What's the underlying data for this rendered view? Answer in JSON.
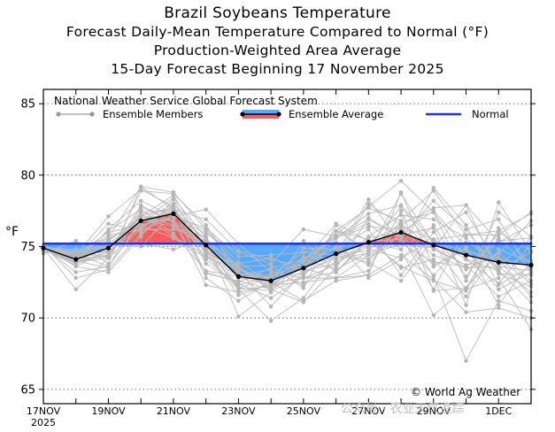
{
  "header": {
    "title": "Brazil Soybeans Temperature",
    "subtitle1": "Forecast Daily-Mean Temperature Compared to Normal (°F)",
    "subtitle2": "Production-Weighted Area Average",
    "subtitle3": "15-Day Forecast Beginning 17 November 2025"
  },
  "copyright": "© World Ag Weather",
  "watermark": "公众号 · 农业天气追踪",
  "colors": {
    "warm": "#ff5a5a",
    "cool": "#55aaff",
    "normal": "#1a33ee",
    "members": "#bbbbbb"
  },
  "chart_data": {
    "type": "line",
    "title": "Brazil Soybeans Temperature",
    "xlabel": "",
    "ylabel": "°F",
    "ylim": [
      64,
      86
    ],
    "yticks": [
      65,
      70,
      75,
      80,
      85
    ],
    "xtick_labels": [
      "17NOV",
      "19NOV",
      "21NOV",
      "23NOV",
      "25NOV",
      "27NOV",
      "29NOV",
      "1DEC"
    ],
    "xtick_sublabel": "2025",
    "x": [
      "17NOV",
      "18NOV",
      "19NOV",
      "20NOV",
      "21NOV",
      "22NOV",
      "23NOV",
      "24NOV",
      "25NOV",
      "26NOV",
      "27NOV",
      "28NOV",
      "29NOV",
      "30NOV",
      "1DEC",
      "2DEC"
    ],
    "legend_header": "National Weather Service Global Forecast System",
    "legend": [
      "Ensemble Members",
      "Ensemble Average",
      "Normal"
    ],
    "normal": [
      75.2,
      75.2,
      75.2,
      75.2,
      75.2,
      75.2,
      75.2,
      75.2,
      75.2,
      75.2,
      75.2,
      75.2,
      75.2,
      75.2,
      75.2,
      75.2
    ],
    "ensemble_average": [
      74.9,
      74.1,
      74.9,
      76.8,
      77.3,
      75.1,
      72.9,
      72.6,
      73.5,
      74.5,
      75.3,
      76.0,
      75.1,
      74.4,
      73.9,
      73.7
    ],
    "members": [
      [
        74.9,
        73.9,
        74.4,
        77.1,
        78.6,
        74.8,
        72.1,
        71.9,
        72.8,
        73.7,
        75.7,
        77.2,
        76.9,
        75.6,
        73.4,
        74.6
      ],
      [
        75.0,
        74.6,
        75.6,
        79.2,
        77.6,
        76.9,
        74.7,
        74.1,
        73.6,
        76.1,
        77.7,
        76.8,
        78.9,
        75.8,
        76.1,
        77.3
      ],
      [
        74.6,
        74.5,
        75.2,
        76.7,
        78.4,
        75.6,
        70.1,
        71.8,
        75.4,
        73.2,
        75.4,
        73.6,
        72.6,
        71.9,
        76.3,
        73.7
      ],
      [
        75.1,
        72.8,
        73.4,
        75.9,
        77.6,
        74.7,
        73.6,
        73.7,
        72.1,
        76.5,
        74.1,
        75.8,
        73.7,
        74.9,
        72.0,
        73.2
      ],
      [
        74.7,
        74.2,
        75.8,
        76.2,
        76.2,
        75.7,
        72.1,
        72.8,
        74.1,
        75.8,
        77.8,
        79.6,
        77.4,
        72.6,
        77.4,
        75.7
      ],
      [
        74.7,
        74.1,
        76.1,
        77.6,
        75.9,
        73.3,
        72.9,
        72.9,
        73.9,
        74.9,
        73.7,
        76.6,
        74.8,
        77.9,
        73.1,
        72.2
      ],
      [
        74.5,
        75.4,
        73.8,
        79.2,
        78.8,
        76.2,
        73.9,
        72.5,
        71.2,
        72.6,
        73.0,
        74.4,
        72.7,
        70.4,
        70.7,
        70.0
      ],
      [
        75.0,
        73.2,
        73.6,
        76.7,
        77.4,
        74.6,
        73.4,
        72.4,
        73.5,
        76.1,
        74.8,
        74.2,
        75.5,
        73.4,
        74.5,
        76.8
      ],
      [
        74.8,
        73.8,
        76.2,
        78.2,
        77.1,
        77.6,
        75.2,
        73.2,
        72.8,
        73.2,
        75.6,
        76.0,
        77.5,
        75.0,
        70.9,
        74.0
      ],
      [
        75.0,
        74.3,
        74.7,
        76.3,
        77.9,
        73.8,
        72.4,
        71.4,
        72.9,
        75.6,
        77.3,
        77.9,
        75.3,
        74.7,
        74.1,
        71.5
      ],
      [
        75.1,
        73.8,
        75.4,
        75.2,
        74.8,
        75.5,
        73.6,
        72.1,
        74.3,
        74.1,
        78.0,
        76.5,
        77.7,
        77.9,
        75.3,
        76.5
      ],
      [
        75.0,
        74.5,
        73.6,
        76.8,
        76.9,
        72.3,
        71.8,
        72.3,
        72.5,
        72.8,
        74.4,
        75.2,
        74.9,
        73.7,
        71.5,
        72.6
      ],
      [
        74.7,
        74.7,
        74.2,
        77.9,
        76.7,
        73.2,
        72.5,
        73.5,
        74.1,
        75.7,
        76.9,
        75.7,
        72.0,
        76.2,
        76.9,
        73.1
      ],
      [
        74.9,
        72.0,
        74.2,
        76.2,
        77.8,
        74.5,
        73.8,
        74.2,
        73.2,
        76.1,
        75.5,
        73.5,
        74.1,
        71.5,
        74.8,
        73.9
      ],
      [
        74.9,
        74.8,
        74.9,
        77.2,
        76.5,
        75.0,
        73.3,
        70.8,
        73.2,
        74.2,
        74.5,
        75.8,
        76.3,
        70.9,
        78.1,
        74.6
      ],
      [
        75.0,
        74.4,
        77.1,
        79.0,
        77.8,
        72.8,
        71.2,
        72.6,
        73.5,
        72.8,
        73.0,
        78.8,
        73.6,
        74.8,
        73.6,
        71.8
      ],
      [
        74.8,
        74.2,
        75.1,
        75.0,
        77.4,
        75.5,
        73.4,
        72.7,
        74.9,
        74.8,
        76.2,
        73.0,
        76.0,
        77.4,
        73.6,
        75.6
      ],
      [
        75.1,
        73.6,
        73.2,
        75.7,
        78.3,
        74.4,
        72.0,
        69.8,
        71.4,
        74.5,
        74.1,
        76.4,
        75.5,
        74.1,
        73.3,
        71.1
      ],
      [
        74.7,
        74.4,
        76.0,
        76.5,
        77.1,
        76.3,
        74.3,
        74.4,
        74.6,
        74.4,
        78.3,
        75.2,
        73.9,
        73.6,
        75.4,
        75.6
      ],
      [
        74.8,
        74.7,
        74.6,
        76.9,
        76.8,
        75.1,
        72.8,
        72.4,
        73.5,
        74.5,
        74.7,
        76.7,
        77.4,
        74.1,
        72.4,
        75.2
      ],
      [
        75.0,
        73.6,
        74.8,
        77.4,
        77.6,
        73.1,
        72.6,
        72.0,
        71.1,
        73.5,
        77.0,
        75.6,
        78.2,
        76.2,
        73.1,
        73.0
      ],
      [
        74.8,
        73.9,
        74.2,
        78.9,
        78.7,
        76.5,
        73.1,
        73.0,
        74.6,
        75.3,
        72.8,
        74.1,
        76.5,
        72.9,
        76.0,
        74.7
      ],
      [
        74.9,
        74.5,
        75.6,
        76.5,
        75.6,
        74.2,
        73.5,
        71.9,
        74.0,
        76.6,
        75.4,
        75.5,
        73.0,
        75.3,
        74.2,
        73.6
      ],
      [
        74.8,
        74.0,
        73.5,
        77.8,
        76.7,
        74.7,
        71.6,
        72.4,
        72.8,
        72.8,
        73.3,
        77.5,
        71.9,
        72.1,
        74.6,
        72.6
      ],
      [
        75.0,
        74.2,
        76.6,
        76.1,
        77.1,
        75.9,
        74.6,
        73.8,
        76.2,
        75.7,
        76.6,
        74.8,
        79.1,
        76.5,
        72.3,
        73.6
      ],
      [
        74.9,
        73.9,
        74.6,
        76.4,
        77.6,
        74.1,
        72.3,
        72.9,
        73.1,
        74.4,
        73.9,
        72.6,
        75.5,
        75.8,
        75.8,
        77.4
      ],
      [
        74.8,
        74.6,
        75.0,
        76.7,
        78.0,
        75.2,
        72.0,
        72.2,
        74.0,
        75.6,
        76.4,
        76.2,
        74.4,
        73.5,
        73.6,
        73.3
      ],
      [
        74.9,
        74.2,
        75.5,
        76.9,
        76.4,
        74.9,
        73.0,
        73.4,
        72.3,
        74.0,
        75.0,
        77.8,
        74.8,
        73.7,
        74.2,
        72.4
      ],
      [
        74.7,
        74.2,
        74.3,
        77.2,
        77.6,
        75.3,
        73.1,
        72.8,
        74.1,
        73.4,
        74.6,
        78.7,
        75.2,
        72.0,
        72.8,
        69.2
      ],
      [
        74.9,
        74.4,
        74.4,
        77.3,
        75.7,
        74.4,
        72.9,
        72.6,
        73.6,
        75.0,
        75.2,
        74.8,
        70.2,
        72.1,
        75.6,
        73.4
      ],
      [
        74.8,
        73.7,
        75.4,
        77.0,
        77.2,
        76.1,
        73.6,
        72.0,
        73.3,
        73.8,
        75.3,
        76.5,
        72.9,
        67.0,
        71.2,
        70.5
      ]
    ]
  }
}
